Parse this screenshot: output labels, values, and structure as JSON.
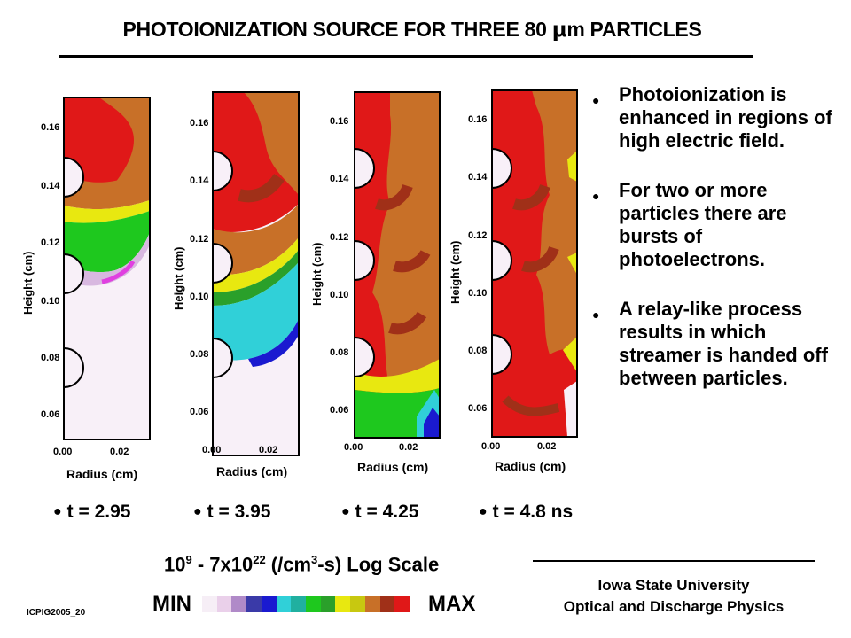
{
  "title": {
    "pre": "PHOTOIONIZATION SOURCE  FOR THREE 80 ",
    "mu": "μ",
    "post": "m PARTICLES"
  },
  "panels": [
    {
      "time_label": "t = 2.95"
    },
    {
      "time_label": "t = 3.95"
    },
    {
      "time_label": "t = 4.25"
    },
    {
      "time_label": "t = 4.8 ns"
    }
  ],
  "axes": {
    "ylabel": "Height (cm)",
    "xlabel": "Radius (cm)",
    "yticks": [
      "0.16",
      "0.14",
      "0.12",
      "0.10",
      "0.08",
      "0.06"
    ],
    "xticks": [
      "0.00",
      "0.02"
    ]
  },
  "bullets": [
    "Photoionization is enhanced in regions of high electric field.",
    "For two or more particles there are bursts of photoelectrons.",
    "A relay-like process results in which streamer is handed off between particles."
  ],
  "scale": {
    "base1": "10",
    "exp1": "9",
    "mid": " -  7x10",
    "exp2": "22",
    "unit_pre": " (/cm",
    "unit_exp": "3",
    "unit_post": "-s) Log Scale",
    "min": "MIN",
    "max": "MAX",
    "colors": [
      "#f6eef6",
      "#ead0ea",
      "#b08ac8",
      "#3a3aa8",
      "#1a1ad0",
      "#30d0d8",
      "#20b0a0",
      "#1ec81e",
      "#2aa02a",
      "#e8e810",
      "#c8c810",
      "#c87028",
      "#a03018",
      "#e01818"
    ]
  },
  "institution": {
    "line1": "Iowa State University",
    "line2": "Optical and Discharge Physics"
  },
  "code": "ICPIG2005_20"
}
